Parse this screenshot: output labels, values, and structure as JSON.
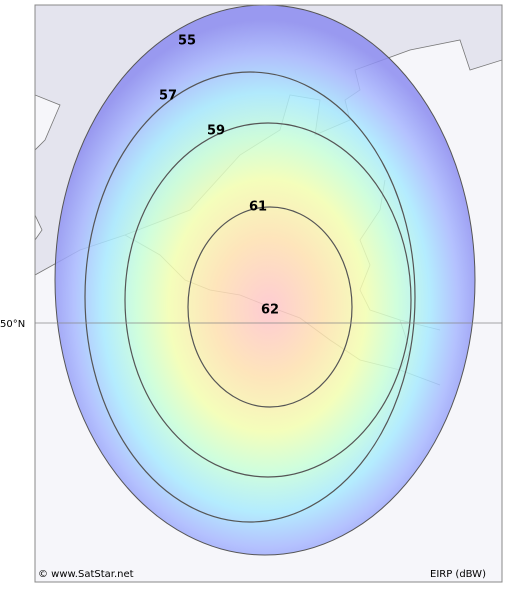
{
  "contour_labels": [
    "55",
    "57",
    "59",
    "61",
    "62"
  ],
  "latitude_label": "50°N",
  "credit": "© www.SatStar.net",
  "unit_label": "EIRP (dBW)"
}
